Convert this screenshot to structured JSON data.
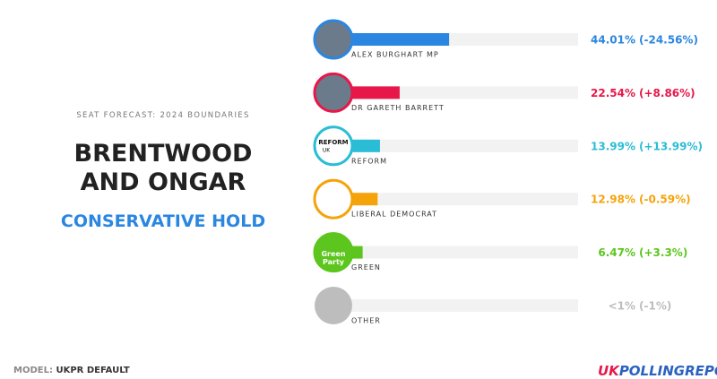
{
  "chart_data": {
    "type": "bar",
    "orientation": "horizontal",
    "subtitle": "SEAT FORECAST: 2024 BOUNDARIES",
    "title": "BRENTWOOD AND ONGAR",
    "result": "CONSERVATIVE HOLD",
    "categories": [
      "ALEX BURGHART MP",
      "DR GARETH BARRETT",
      "REFORM",
      "LIBERAL DEMOCRAT",
      "GREEN",
      "OTHER"
    ],
    "values": [
      44.01,
      22.54,
      13.99,
      12.98,
      6.47,
      0.5
    ],
    "value_labels": [
      "44.01%",
      "22.54%",
      "13.99%",
      "12.98%",
      "6.47%",
      "<1%"
    ],
    "changes": [
      -24.56,
      8.86,
      13.99,
      -0.59,
      3.3,
      -1
    ],
    "change_labels": [
      "(-24.56%)",
      "(+8.86%)",
      "(+13.99%)",
      "(-0.59%)",
      "(+3.3%)",
      "(-1%)"
    ],
    "colors": [
      "#2a86e0",
      "#e8174a",
      "#2bbdd6",
      "#f5a30a",
      "#5cc61e",
      "#bdbdbd"
    ],
    "xlim": [
      0,
      100
    ]
  },
  "logos": {
    "reform": [
      "REFORM",
      "UK"
    ],
    "green": [
      "Green",
      "Party"
    ]
  },
  "footer": {
    "model_label": "MODEL:",
    "model": "UKPR DEFAULT",
    "brand_uk": "UK",
    "brand_rest": "POLLINGREPORT"
  }
}
